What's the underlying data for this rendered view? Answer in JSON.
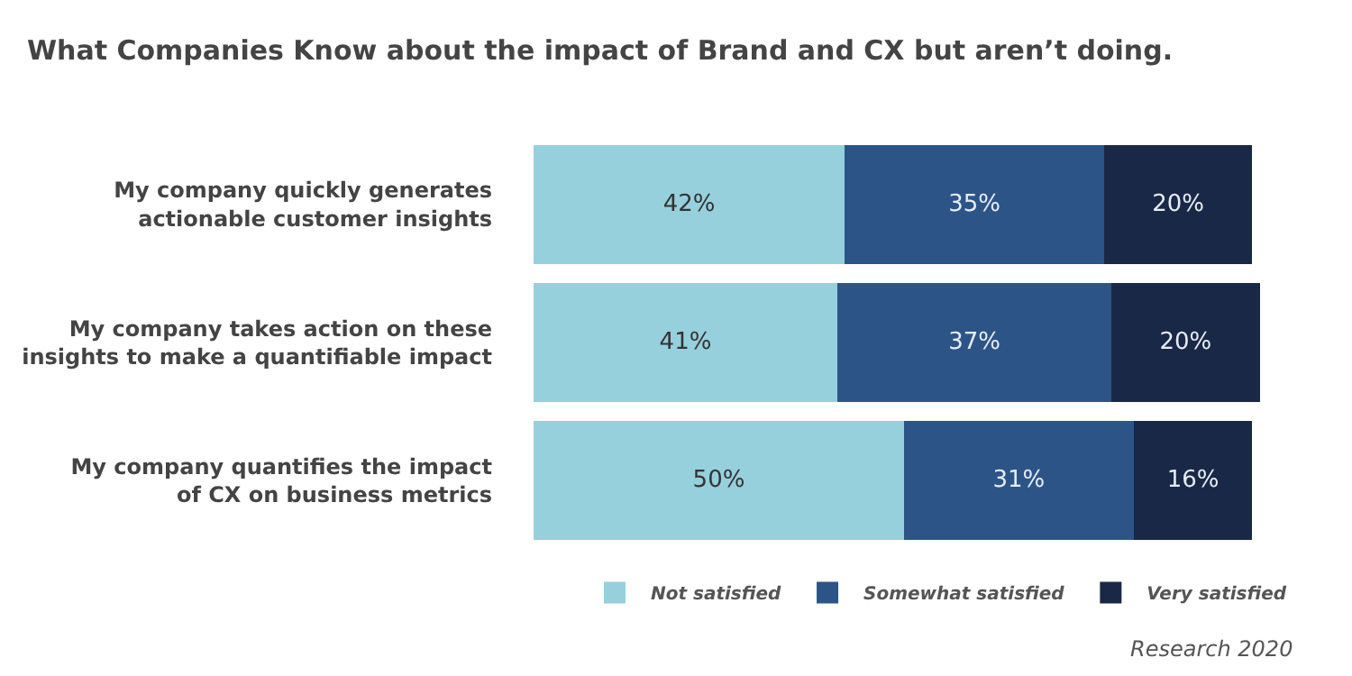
{
  "chart_data": {
    "type": "bar",
    "orientation": "horizontal",
    "stacked": true,
    "legend": "bottom right",
    "title": "What Companies Know about the impact of Brand and CX but aren’t doing.",
    "categories": [
      "My company quickly generates actionable customer insights",
      "My company takes action on these insights to make a quantifiable impact",
      "My company quantifies the impact of CX on business metrics"
    ],
    "series": [
      {
        "name": "Not satisfied",
        "color": "#96d0dc",
        "values": [
          42,
          41,
          50
        ],
        "value_labels": [
          "42%",
          "41%",
          "50%"
        ]
      },
      {
        "name": "Somewhat satisfied",
        "color": "#2c5487",
        "values": [
          35,
          37,
          31
        ],
        "value_labels": [
          "35%",
          "37%",
          "31%"
        ]
      },
      {
        "name": "Very satisfied",
        "color": "#1a2847",
        "values": [
          20,
          20,
          16
        ],
        "value_labels": [
          "20%",
          "20%",
          "16%"
        ]
      }
    ],
    "annotations": [
      "Research 2020"
    ]
  }
}
